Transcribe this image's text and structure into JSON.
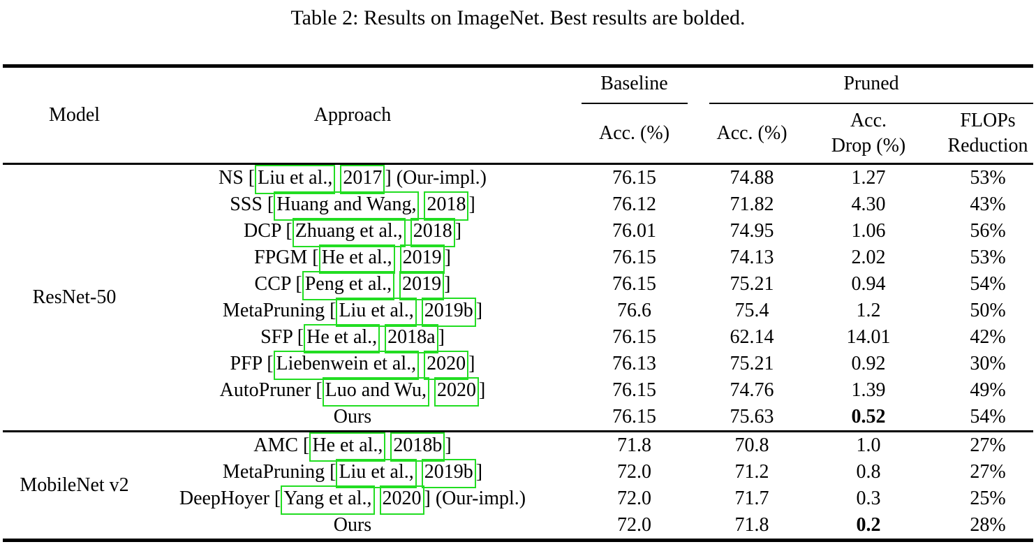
{
  "title": "Table 2: Results on ImageNet. Best results are bolded.",
  "colors": {
    "citation_box_green": "#22dd22",
    "text": "#000000",
    "background": "#ffffff"
  },
  "table": {
    "headers": {
      "model": "Model",
      "approach": "Approach",
      "baseline_group": "Baseline",
      "pruned_group": "Pruned",
      "baseline_acc": "Acc. (%)",
      "pruned_acc": "Acc. (%)",
      "acc_drop_line1": "Acc.",
      "acc_drop_line2": "Drop (%)",
      "flops_line1": "FLOPs",
      "flops_line2": "Reduction"
    },
    "sections": [
      {
        "model": "ResNet-50",
        "rows": [
          {
            "prefix": "NS [",
            "cite_author": "Liu et al.,",
            "cite_year": "2017",
            "suffix": "] (Our-impl.)",
            "baseline_acc": "76.15",
            "pruned_acc": "74.88",
            "acc_drop": "1.27",
            "flops": "53%",
            "drop_bold": false
          },
          {
            "prefix": "SSS [",
            "cite_author": "Huang and Wang,",
            "cite_year": "2018",
            "suffix": "]",
            "baseline_acc": "76.12",
            "pruned_acc": "71.82",
            "acc_drop": "4.30",
            "flops": "43%",
            "drop_bold": false
          },
          {
            "prefix": "DCP [",
            "cite_author": "Zhuang et al.,",
            "cite_year": "2018",
            "suffix": "]",
            "baseline_acc": "76.01",
            "pruned_acc": "74.95",
            "acc_drop": "1.06",
            "flops": "56%",
            "drop_bold": false
          },
          {
            "prefix": "FPGM [",
            "cite_author": "He et al.,",
            "cite_year": "2019",
            "suffix": "]",
            "baseline_acc": "76.15",
            "pruned_acc": "74.13",
            "acc_drop": "2.02",
            "flops": "53%",
            "drop_bold": false
          },
          {
            "prefix": "CCP [",
            "cite_author": "Peng et al.,",
            "cite_year": "2019",
            "suffix": "]",
            "baseline_acc": "76.15",
            "pruned_acc": "75.21",
            "acc_drop": "0.94",
            "flops": "54%",
            "drop_bold": false
          },
          {
            "prefix": "MetaPruning [",
            "cite_author": "Liu et al.,",
            "cite_year": "2019b",
            "suffix": "]",
            "baseline_acc": "76.6",
            "pruned_acc": "75.4",
            "acc_drop": "1.2",
            "flops": "50%",
            "drop_bold": false
          },
          {
            "prefix": "SFP [",
            "cite_author": "He et al.,",
            "cite_year": "2018a",
            "suffix": "]",
            "baseline_acc": "76.15",
            "pruned_acc": "62.14",
            "acc_drop": "14.01",
            "flops": "42%",
            "drop_bold": false
          },
          {
            "prefix": "PFP [",
            "cite_author": "Liebenwein et al.,",
            "cite_year": "2020",
            "suffix": "]",
            "baseline_acc": "76.13",
            "pruned_acc": "75.21",
            "acc_drop": "0.92",
            "flops": "30%",
            "drop_bold": false
          },
          {
            "prefix": "AutoPruner [",
            "cite_author": "Luo and Wu,",
            "cite_year": "2020",
            "suffix": "]",
            "baseline_acc": "76.15",
            "pruned_acc": "74.76",
            "acc_drop": "1.39",
            "flops": "49%",
            "drop_bold": false
          },
          {
            "prefix": "Ours",
            "cite_author": null,
            "cite_year": null,
            "suffix": "",
            "baseline_acc": "76.15",
            "pruned_acc": "75.63",
            "acc_drop": "0.52",
            "flops": "54%",
            "drop_bold": true
          }
        ]
      },
      {
        "model": "MobileNet v2",
        "rows": [
          {
            "prefix": "AMC [",
            "cite_author": "He et al.,",
            "cite_year": "2018b",
            "suffix": "]",
            "baseline_acc": "71.8",
            "pruned_acc": "70.8",
            "acc_drop": "1.0",
            "flops": "27%",
            "drop_bold": false
          },
          {
            "prefix": "MetaPruning [",
            "cite_author": "Liu et al.,",
            "cite_year": "2019b",
            "suffix": "]",
            "baseline_acc": "72.0",
            "pruned_acc": "71.2",
            "acc_drop": "0.8",
            "flops": "27%",
            "drop_bold": false
          },
          {
            "prefix": "DeepHoyer [",
            "cite_author": "Yang et al.,",
            "cite_year": "2020",
            "suffix": "] (Our-impl.)",
            "baseline_acc": "72.0",
            "pruned_acc": "71.7",
            "acc_drop": "0.3",
            "flops": "25%",
            "drop_bold": false
          },
          {
            "prefix": "Ours",
            "cite_author": null,
            "cite_year": null,
            "suffix": "",
            "baseline_acc": "72.0",
            "pruned_acc": "71.8",
            "acc_drop": "0.2",
            "flops": "28%",
            "drop_bold": true
          }
        ]
      }
    ]
  }
}
